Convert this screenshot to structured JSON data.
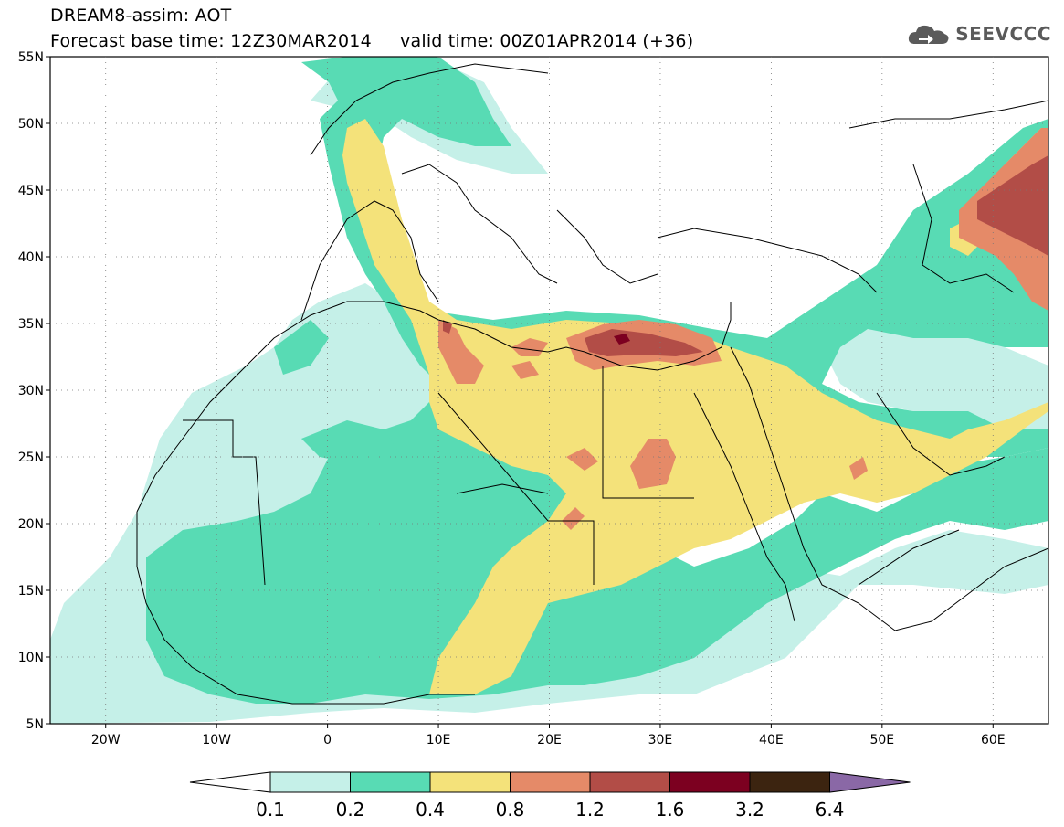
{
  "header": {
    "line1": "DREAM8-assim: AOT",
    "line2": "Forecast base time: 12Z30MAR2014     valid time: 00Z01APR2014 (+36)"
  },
  "logo": {
    "text": "SEEVCCC",
    "icon": "cloud-icon"
  },
  "map": {
    "lat_labels": [
      "55N",
      "50N",
      "45N",
      "40N",
      "35N",
      "30N",
      "25N",
      "20N",
      "15N",
      "10N",
      "5N"
    ],
    "lon_labels": [
      "20W",
      "10W",
      "0",
      "10E",
      "20E",
      "30E",
      "40E",
      "50E",
      "60E"
    ],
    "lat_range": [
      5,
      55
    ],
    "lon_range": [
      -25,
      65
    ]
  },
  "colorbar": {
    "labels": [
      "0.1",
      "0.2",
      "0.4",
      "0.8",
      "1.2",
      "1.6",
      "3.2",
      "6.4"
    ],
    "colors": [
      "#c5f0e8",
      "#58dbb4",
      "#f4e27a",
      "#e58a68",
      "#b24d47",
      "#7c0020",
      "#3c2410",
      "#8a68a6"
    ],
    "left_arrow_color": "#ffffff"
  }
}
